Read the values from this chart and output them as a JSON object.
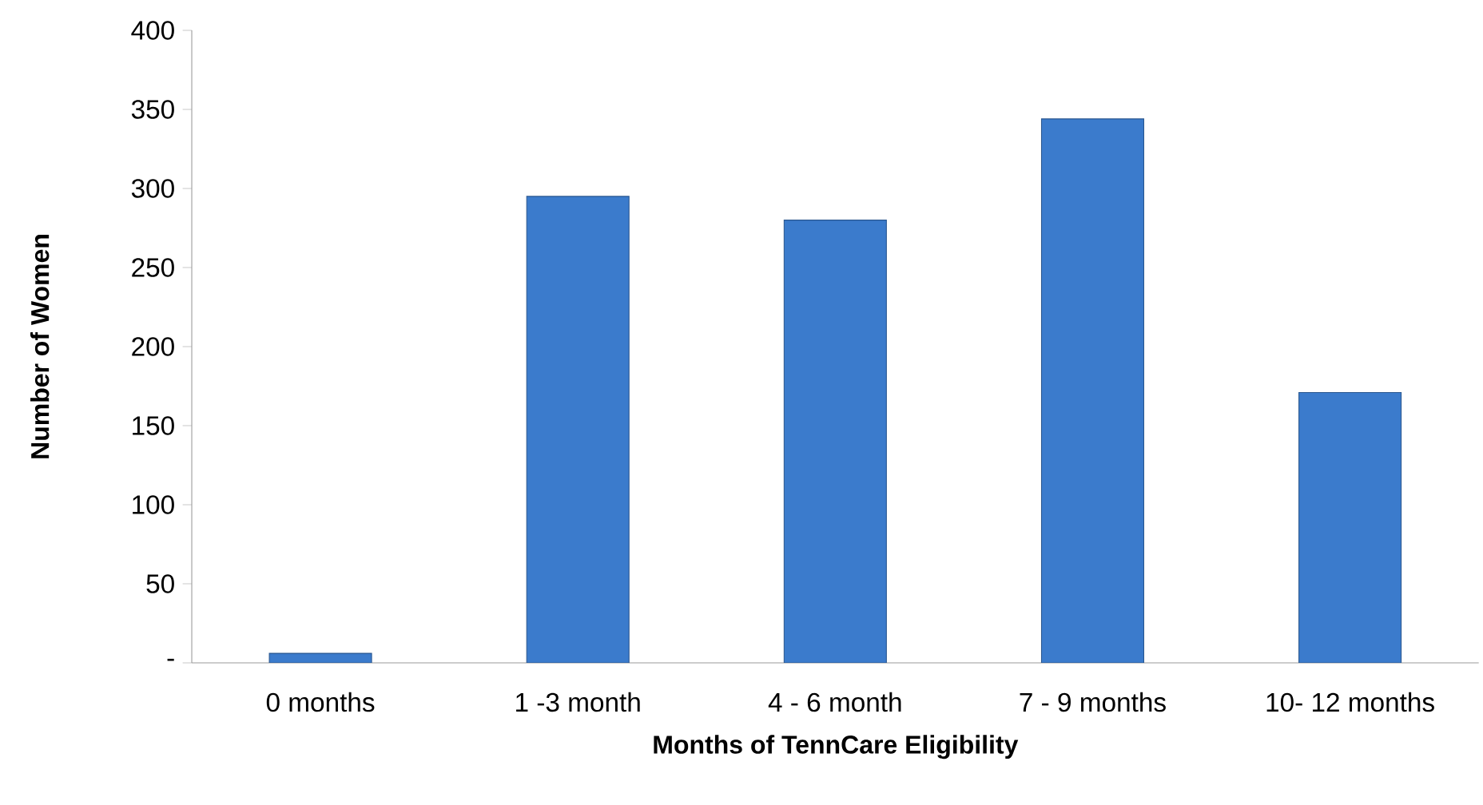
{
  "chart_data": {
    "type": "bar",
    "xlabel": "Months of TennCare Eligibility",
    "ylabel": "Number of Women",
    "categories": [
      "0 months",
      "1 -3 month",
      "4 - 6 month",
      "7 - 9 months",
      "10- 12 months"
    ],
    "values": [
      6,
      295,
      280,
      344,
      171
    ],
    "color": "#3b7bcc",
    "ylim": [
      0,
      400
    ],
    "yticks": [
      {
        "value": 0,
        "label": "-"
      },
      50,
      100,
      150,
      200,
      250,
      300,
      350,
      400
    ]
  }
}
